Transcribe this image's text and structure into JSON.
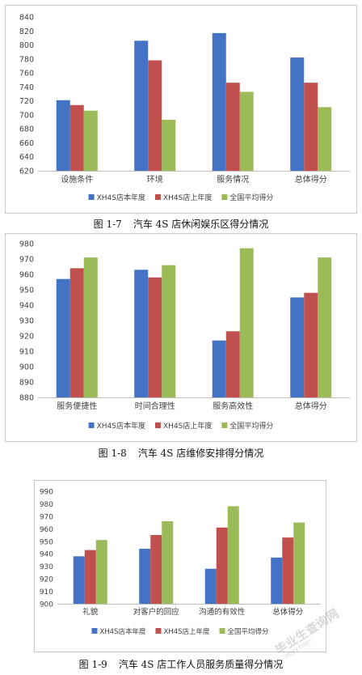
{
  "colors": {
    "current": "#4472c4",
    "last": "#c0504d",
    "national": "#9bbb59",
    "axis": "#bfbfbf",
    "grid": "#e6e6e6",
    "text": "#404040"
  },
  "watermark": {
    "text": "毕业生查询网",
    "url": "abyy.com"
  },
  "charts": [
    {
      "caption_num": "图 1-7",
      "caption_text": "汽车 4S 店休闲娱乐区得分情况",
      "chart_data": {
        "type": "bar",
        "categories": [
          "设施条件",
          "环境",
          "服务情况",
          "总体得分"
        ],
        "series": [
          {
            "name": "XH4S店本年度",
            "values": [
              721,
              806,
              817,
              782
            ]
          },
          {
            "name": "XH4S店上年度",
            "values": [
              714,
              778,
              746,
              746
            ]
          },
          {
            "name": "全国平均得分",
            "values": [
              706,
              693,
              733,
              711
            ]
          }
        ],
        "ylim": [
          620,
          840
        ],
        "ystep": 20,
        "grid": false,
        "legend": "bottom"
      }
    },
    {
      "caption_num": "图 1-8",
      "caption_text": "汽车 4S 店维修安排得分情况",
      "chart_data": {
        "type": "bar",
        "categories": [
          "服务便捷性",
          "时间合理性",
          "服务高效性",
          "总体得分"
        ],
        "series": [
          {
            "name": "XH4S店本年度",
            "values": [
              957,
              963,
              917,
              945
            ]
          },
          {
            "name": "XH4S店上年度",
            "values": [
              964,
              958,
              923,
              948
            ]
          },
          {
            "name": "全国平均得分",
            "values": [
              971,
              966,
              977,
              971
            ]
          }
        ],
        "ylim": [
          880,
          980
        ],
        "ystep": 10,
        "grid": false,
        "legend": "bottom"
      }
    },
    {
      "caption_num": "图 1-9",
      "caption_text": "汽车 4S 店工作人员服务质量得分情况",
      "chart_data": {
        "type": "bar",
        "categories": [
          "礼貌",
          "对客户的回应",
          "沟通的有效性",
          "总体得分"
        ],
        "series": [
          {
            "name": "XH4S店本年度",
            "values": [
              938,
              944,
              928,
              937
            ]
          },
          {
            "name": "XH4S店上年度",
            "values": [
              943,
              955,
              961,
              953
            ]
          },
          {
            "name": "全国平均得分",
            "values": [
              951,
              966,
              978,
              965
            ]
          }
        ],
        "ylim": [
          900,
          990
        ],
        "ystep": 10,
        "grid": false,
        "legend": "bottom"
      }
    }
  ]
}
